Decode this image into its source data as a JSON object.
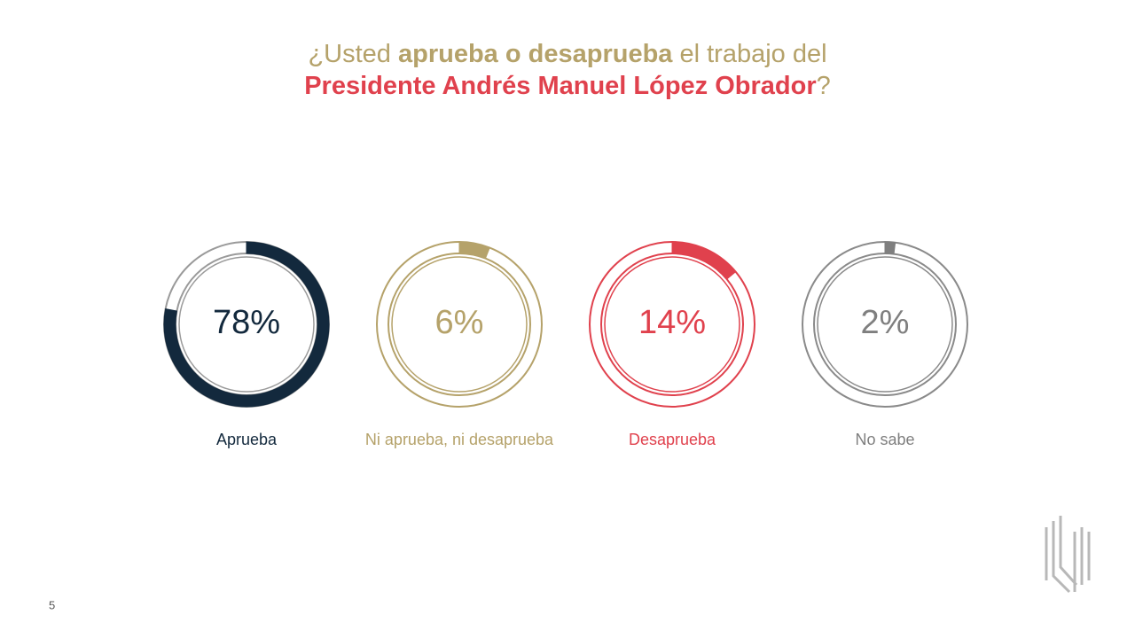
{
  "title": [
    {
      "text": "¿Usted ",
      "bold": false,
      "color": "#b5a26a",
      "line": 0
    },
    {
      "text": "aprueba o desaprueba",
      "bold": true,
      "color": "#b5a26a",
      "line": 0
    },
    {
      "text": " el trabajo del",
      "bold": false,
      "color": "#b5a26a",
      "line": 0
    },
    {
      "text": "Presidente Andrés Manuel López Obrador",
      "bold": true,
      "color": "#e0414d",
      "line": 1
    },
    {
      "text": "?",
      "bold": false,
      "color": "#b5a26a",
      "line": 1
    }
  ],
  "chart_data": [
    {
      "type": "donut",
      "label": "Aprueba",
      "value": 78,
      "value_label": "78%",
      "color": "#13293d",
      "track_color": "#9a9a9a"
    },
    {
      "type": "donut",
      "label": "Ni aprueba, ni desaprueba",
      "value": 6,
      "value_label": "6%",
      "color": "#b5a26a",
      "track_color": "#b5a26a"
    },
    {
      "type": "donut",
      "label": "Desaprueba",
      "value": 14,
      "value_label": "14%",
      "color": "#e0414d",
      "track_color": "#e0414d"
    },
    {
      "type": "donut",
      "label": "No sabe",
      "value": 2,
      "value_label": "2%",
      "color": "#7f7f7f",
      "track_color": "#8a8a8a"
    }
  ],
  "page_number": 5
}
